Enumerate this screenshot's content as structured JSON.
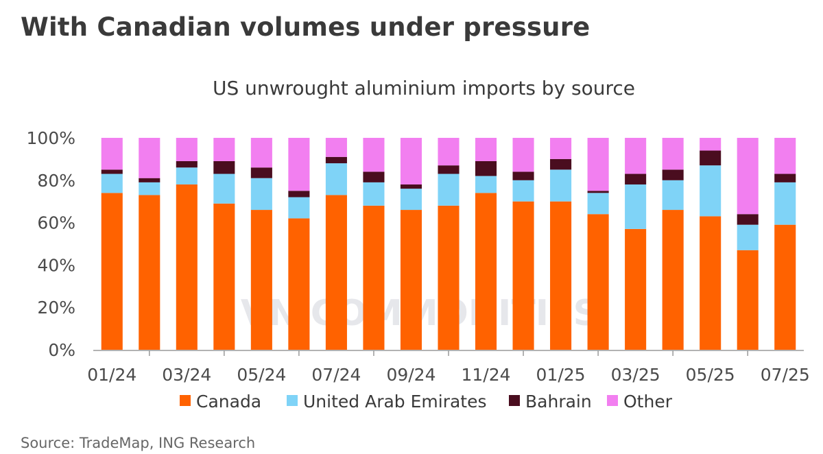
{
  "header": {
    "title": "With Canadian volumes under pressure"
  },
  "footer": {
    "source": "Source: TradeMap, ING Research"
  },
  "watermark": {
    "text": "VN COMMODITIES"
  },
  "colors": {
    "Canada": "#ff6200",
    "United Arab Emirates": "#7fd3f7",
    "Bahrain": "#4a0d1f",
    "Other": "#f27ff0",
    "axis": "#999999"
  },
  "chart_data": {
    "type": "bar",
    "stacked": true,
    "title": "US unwrought aluminium imports by source",
    "xlabel": "",
    "ylabel": "",
    "ylim": [
      0,
      100
    ],
    "y_ticks": [
      "0%",
      "20%",
      "40%",
      "60%",
      "80%",
      "100%"
    ],
    "categories": [
      "01/24",
      "02/24",
      "03/24",
      "04/24",
      "05/24",
      "06/24",
      "07/24",
      "08/24",
      "09/24",
      "10/24",
      "11/24",
      "12/24",
      "01/25",
      "02/25",
      "03/25",
      "04/25",
      "05/25",
      "06/25",
      "07/25"
    ],
    "x_tick_labels": [
      "01/24",
      "03/24",
      "05/24",
      "07/24",
      "09/24",
      "11/24",
      "01/25",
      "03/25",
      "05/25",
      "07/25"
    ],
    "series": [
      {
        "name": "Canada",
        "values": [
          74,
          73,
          78,
          69,
          66,
          62,
          73,
          68,
          66,
          68,
          74,
          70,
          70,
          64,
          57,
          66,
          63,
          47,
          59
        ]
      },
      {
        "name": "United Arab Emirates",
        "values": [
          9,
          6,
          8,
          14,
          15,
          10,
          15,
          11,
          10,
          15,
          8,
          10,
          15,
          10,
          21,
          14,
          24,
          12,
          20
        ]
      },
      {
        "name": "Bahrain",
        "values": [
          2,
          2,
          3,
          6,
          5,
          3,
          3,
          5,
          2,
          4,
          7,
          4,
          5,
          1,
          5,
          5,
          7,
          5,
          4
        ]
      },
      {
        "name": "Other",
        "values": [
          15,
          19,
          11,
          11,
          14,
          25,
          9,
          16,
          22,
          13,
          11,
          16,
          10,
          25,
          17,
          15,
          6,
          36,
          17
        ]
      }
    ],
    "legend": [
      "Canada",
      "United Arab Emirates",
      "Bahrain",
      "Other"
    ],
    "legend_position": "bottom"
  }
}
